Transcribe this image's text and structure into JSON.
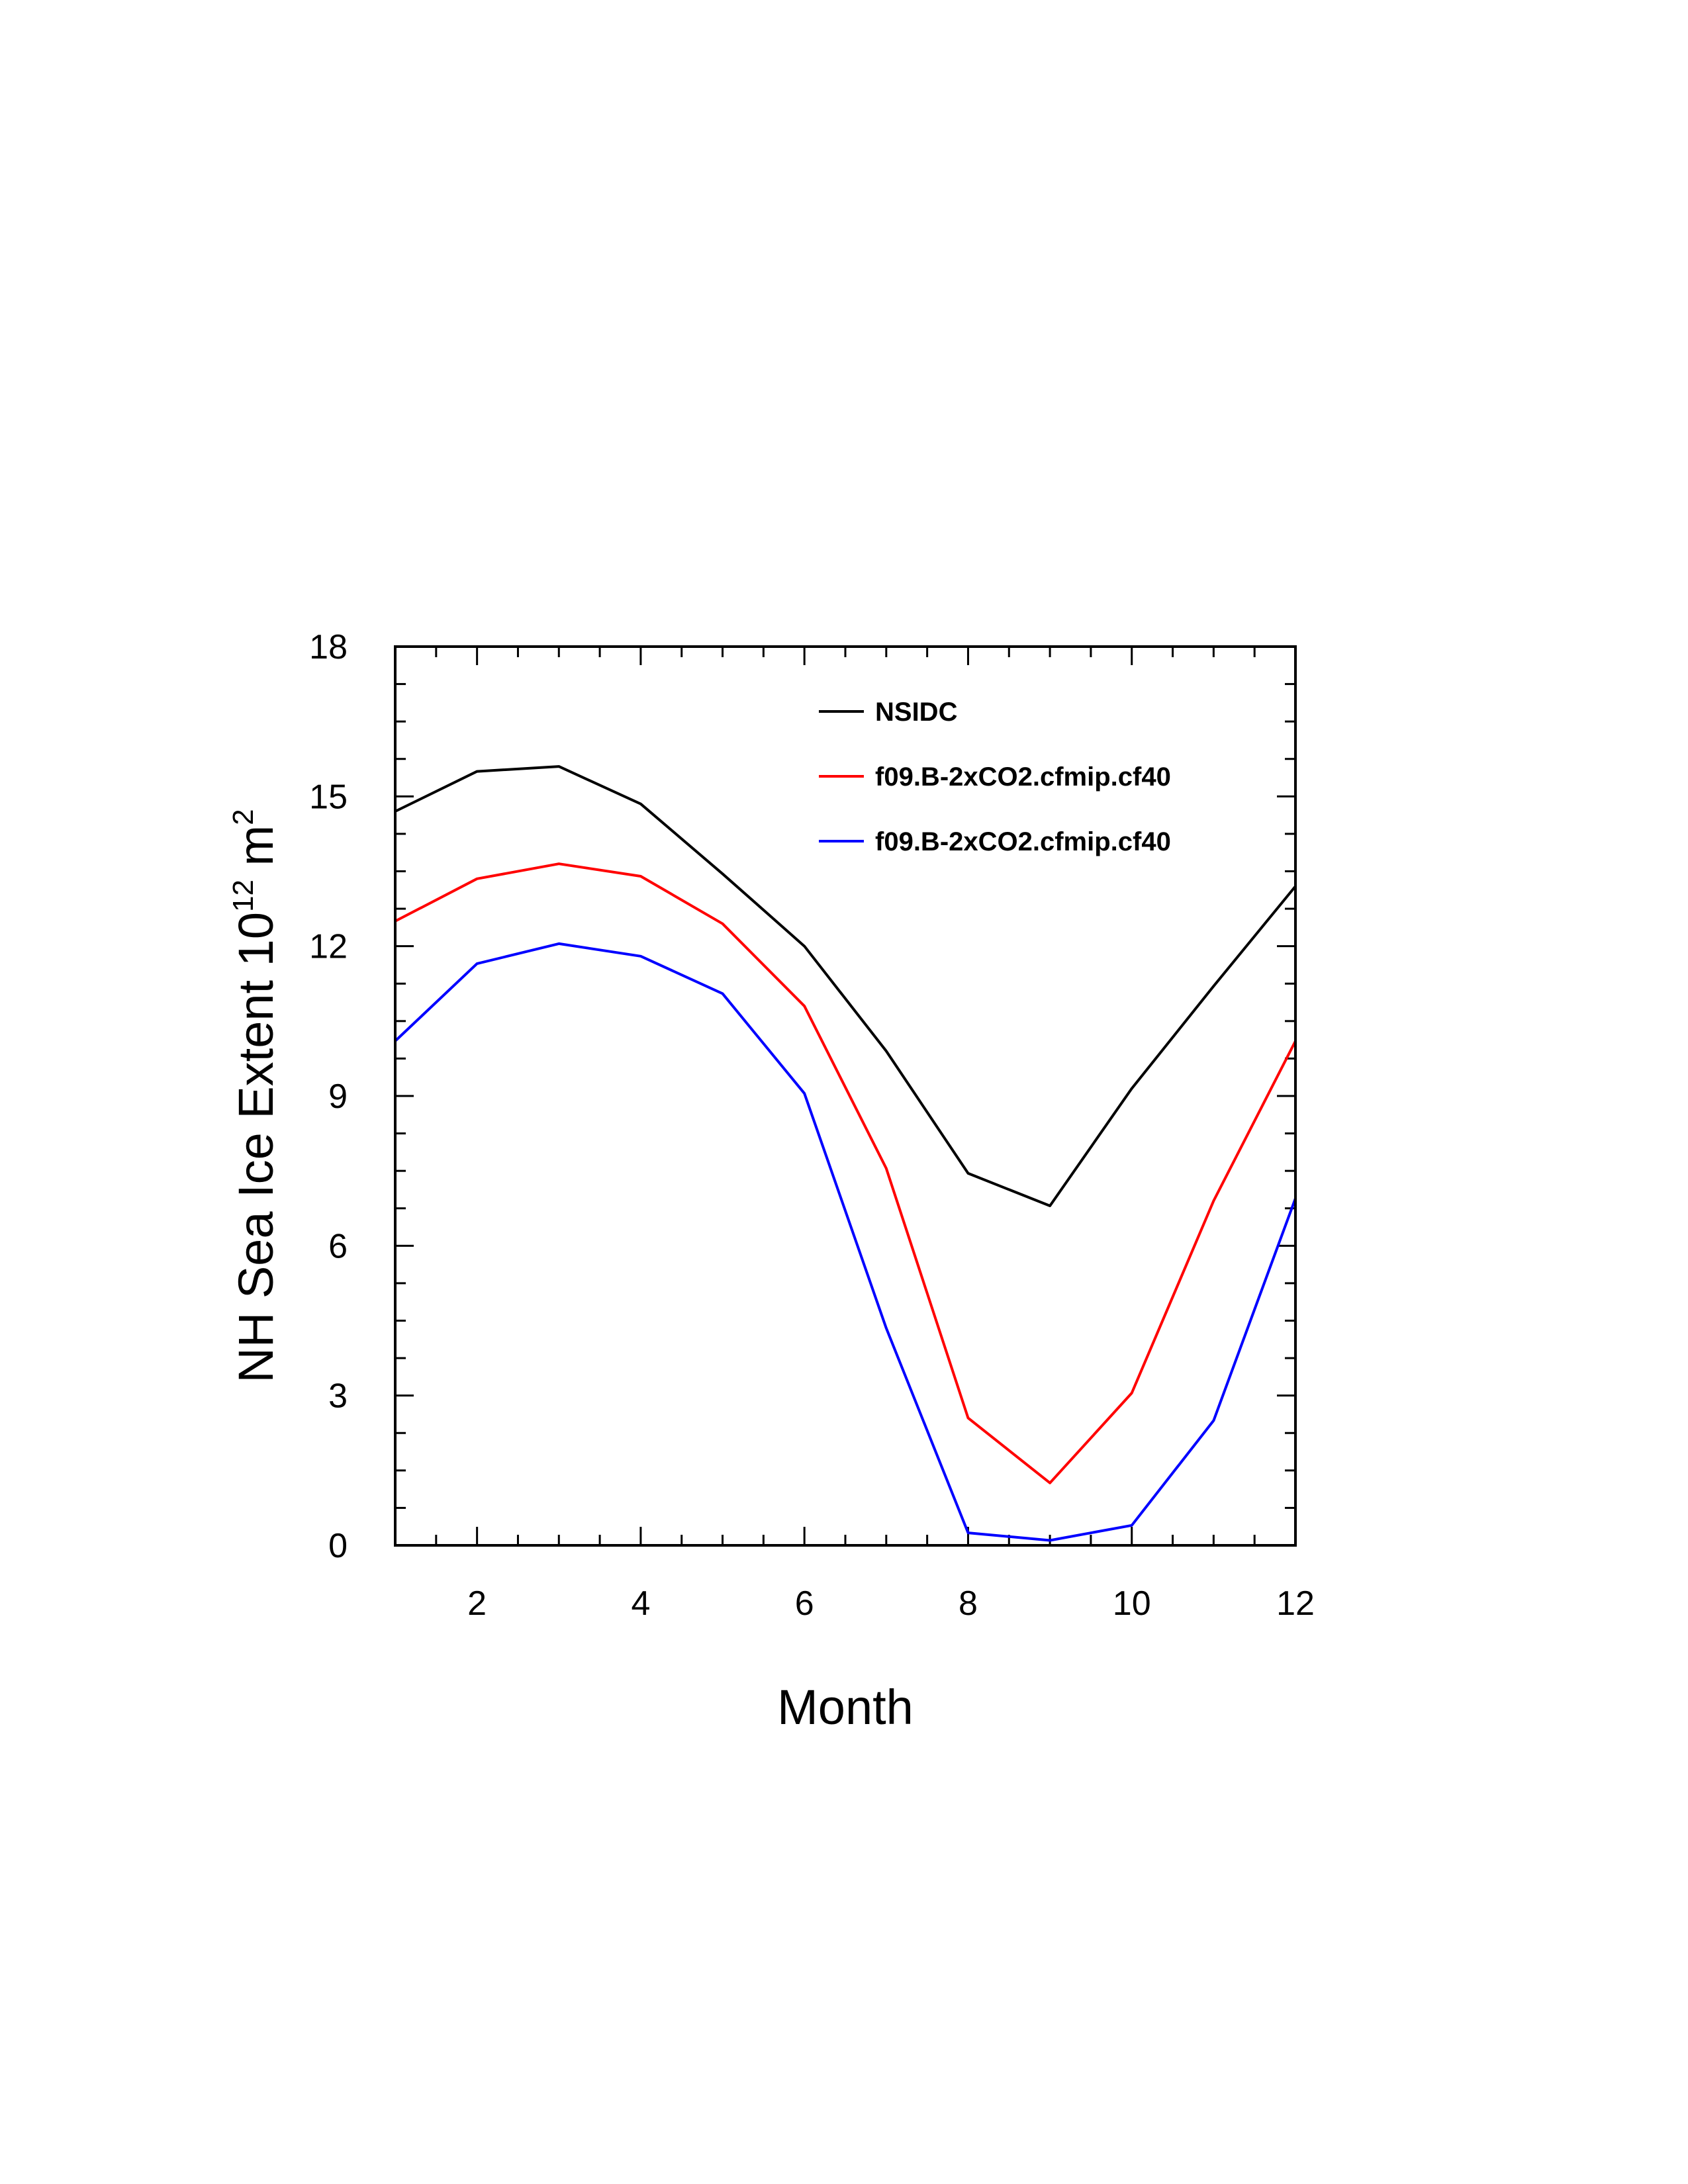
{
  "chart_data": {
    "type": "line",
    "xlabel": "Month",
    "ylabel": {
      "prefix": "NH Sea Ice Extent 10",
      "exponent1": "12",
      "middle": " m",
      "exponent2": "2"
    },
    "xlim": [
      1,
      12
    ],
    "ylim": [
      0,
      18
    ],
    "x_ticks": [
      2,
      4,
      6,
      8,
      10,
      12
    ],
    "x_tick_labels": [
      "2",
      "4",
      "6",
      "8",
      "10",
      "12"
    ],
    "y_ticks": [
      0,
      3,
      6,
      9,
      12,
      15,
      18
    ],
    "y_tick_labels": [
      "0",
      "3",
      "6",
      "9",
      "12",
      "15",
      "18"
    ],
    "grid": false,
    "legend_position": "top-right",
    "x": [
      1,
      2,
      3,
      4,
      5,
      6,
      7,
      8,
      9,
      10,
      11,
      12
    ],
    "series": [
      {
        "name": "NSIDC",
        "color": "#000000",
        "values": [
          14.7,
          15.5,
          15.6,
          14.85,
          13.45,
          12.0,
          9.9,
          7.45,
          6.8,
          9.15,
          11.2,
          13.2
        ]
      },
      {
        "name": "f09.B-2xCO2.cfmip.cf40",
        "color": "#ff0000",
        "values": [
          12.5,
          13.35,
          13.65,
          13.4,
          12.45,
          10.8,
          7.55,
          2.55,
          1.25,
          3.05,
          6.9,
          10.1
        ]
      },
      {
        "name": "f09.B-2xCO2.cfmip.cf40",
        "color": "#0000ff",
        "values": [
          10.1,
          11.65,
          12.05,
          11.8,
          11.05,
          9.05,
          4.35,
          0.25,
          0.1,
          0.4,
          2.5,
          6.95
        ]
      }
    ]
  }
}
